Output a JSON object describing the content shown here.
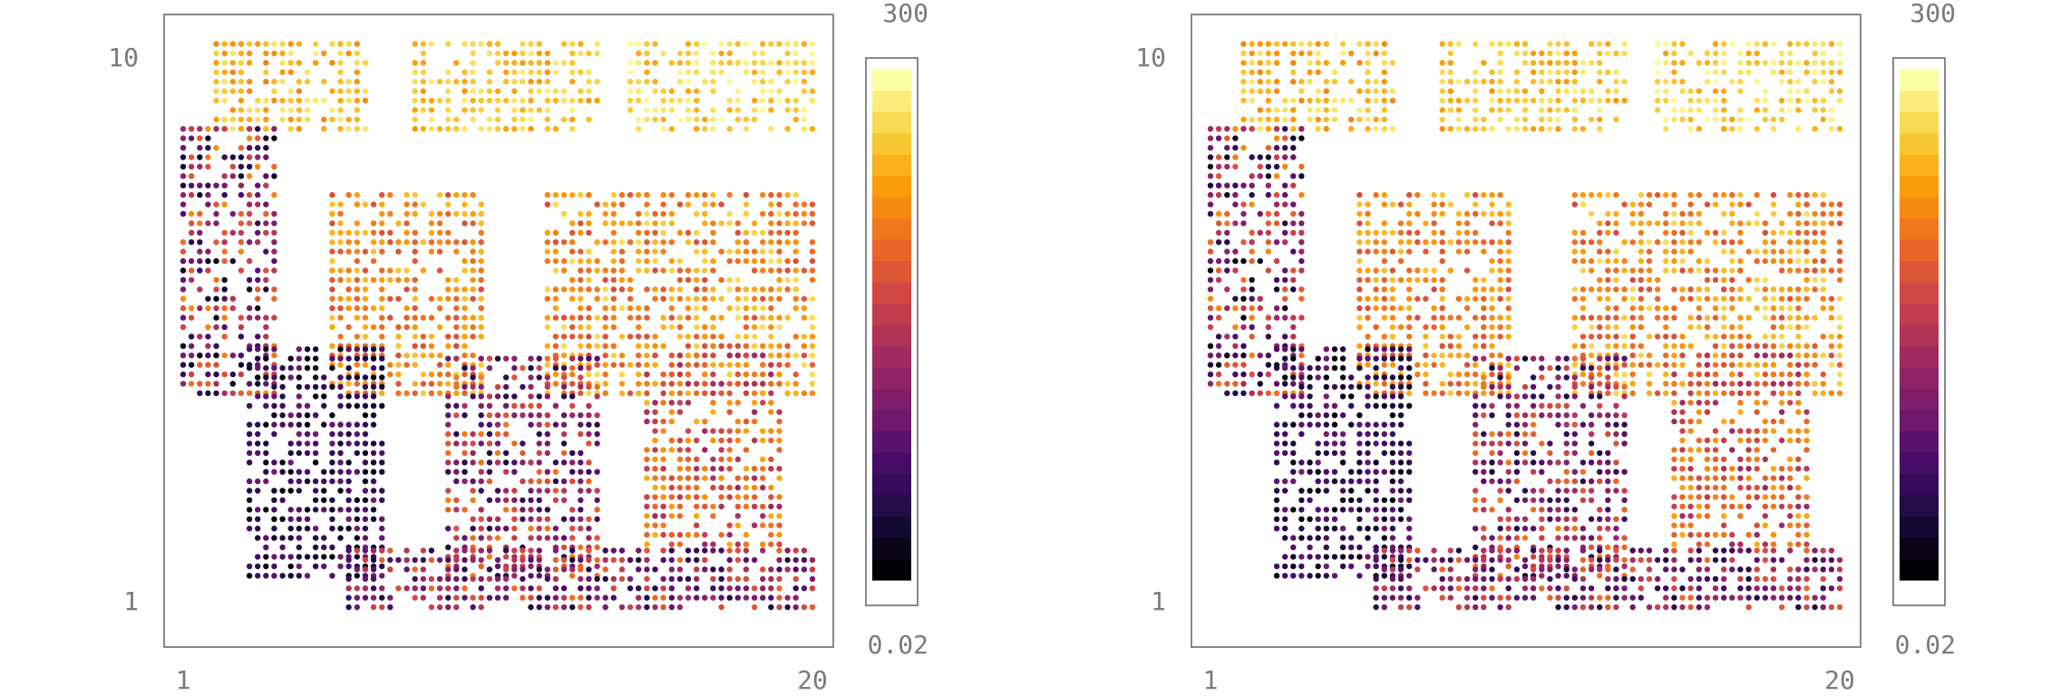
{
  "chart_data": [
    {
      "type": "scatter",
      "xlabel": "",
      "ylabel": "",
      "x_ticks": [
        "1",
        "20"
      ],
      "y_ticks": [
        "1",
        "10"
      ],
      "xlim": [
        1,
        20
      ],
      "ylim": [
        1,
        10
      ],
      "colorbar": {
        "min_label": "0.02",
        "max_label": "300",
        "colormap": "inferno",
        "steps": 24
      },
      "clusters": [
        {
          "region": "top-left-block",
          "x": [
            2.0,
            6.5
          ],
          "y": [
            8.6,
            10.0
          ],
          "value_range": [
            20,
            200
          ]
        },
        {
          "region": "top-middle-block",
          "x": [
            8.0,
            13.5
          ],
          "y": [
            8.6,
            10.0
          ],
          "value_range": [
            30,
            220
          ]
        },
        {
          "region": "top-right-block",
          "x": [
            14.5,
            20.0
          ],
          "y": [
            8.6,
            10.0
          ],
          "value_range": [
            40,
            300
          ]
        },
        {
          "region": "left-rings",
          "x": [
            1.0,
            3.8
          ],
          "y": [
            4.4,
            8.6
          ],
          "value_range": [
            0.02,
            30
          ]
        },
        {
          "region": "center-left-block",
          "x": [
            5.5,
            10.0
          ],
          "y": [
            4.4,
            7.6
          ],
          "value_range": [
            5,
            90
          ]
        },
        {
          "region": "center-right-block",
          "x": [
            12.0,
            20.0
          ],
          "y": [
            4.4,
            7.6
          ],
          "value_range": [
            5,
            150
          ]
        },
        {
          "region": "lower-left-ellipse",
          "x": [
            3.0,
            7.0
          ],
          "y": [
            1.5,
            5.2
          ],
          "value_range": [
            0.02,
            0.5
          ]
        },
        {
          "region": "lower-middle-rings",
          "x": [
            9.0,
            13.5
          ],
          "y": [
            1.5,
            5.0
          ],
          "value_range": [
            0.05,
            20
          ]
        },
        {
          "region": "lower-right-rings",
          "x": [
            15.0,
            19.0
          ],
          "y": [
            2.0,
            5.0
          ],
          "value_range": [
            1,
            60
          ]
        },
        {
          "region": "bottom-arcs",
          "x": [
            6.0,
            20.0
          ],
          "y": [
            1.0,
            2.0
          ],
          "value_range": [
            0.05,
            15
          ]
        }
      ]
    },
    {
      "type": "scatter",
      "xlabel": "",
      "ylabel": "",
      "x_ticks": [
        "1",
        "20"
      ],
      "y_ticks": [
        "1",
        "10"
      ],
      "xlim": [
        1,
        20
      ],
      "ylim": [
        1,
        10
      ],
      "colorbar": {
        "min_label": "0.02",
        "max_label": "300",
        "colormap": "inferno",
        "steps": 24
      },
      "clusters": [
        {
          "region": "top-left-block",
          "x": [
            2.0,
            6.5
          ],
          "y": [
            8.6,
            10.0
          ],
          "value_range": [
            20,
            200
          ]
        },
        {
          "region": "top-middle-block",
          "x": [
            8.0,
            13.5
          ],
          "y": [
            8.6,
            10.0
          ],
          "value_range": [
            30,
            220
          ]
        },
        {
          "region": "top-right-block",
          "x": [
            14.5,
            20.0
          ],
          "y": [
            8.6,
            10.0
          ],
          "value_range": [
            40,
            300
          ]
        },
        {
          "region": "left-rings",
          "x": [
            1.0,
            3.8
          ],
          "y": [
            4.4,
            8.6
          ],
          "value_range": [
            0.02,
            30
          ]
        },
        {
          "region": "center-left-block",
          "x": [
            5.5,
            10.0
          ],
          "y": [
            4.4,
            7.6
          ],
          "value_range": [
            5,
            90
          ]
        },
        {
          "region": "center-right-block",
          "x": [
            12.0,
            20.0
          ],
          "y": [
            4.4,
            7.6
          ],
          "value_range": [
            5,
            150
          ]
        },
        {
          "region": "lower-left-ellipse",
          "x": [
            3.0,
            7.0
          ],
          "y": [
            1.5,
            5.2
          ],
          "value_range": [
            0.02,
            0.5
          ]
        },
        {
          "region": "lower-middle-rings",
          "x": [
            9.0,
            13.5
          ],
          "y": [
            1.5,
            5.0
          ],
          "value_range": [
            0.05,
            20
          ]
        },
        {
          "region": "lower-right-rings",
          "x": [
            15.0,
            19.0
          ],
          "y": [
            2.0,
            5.0
          ],
          "value_range": [
            1,
            60
          ]
        },
        {
          "region": "bottom-arcs",
          "x": [
            6.0,
            20.0
          ],
          "y": [
            1.0,
            2.0
          ],
          "value_range": [
            0.05,
            15
          ]
        }
      ]
    }
  ]
}
